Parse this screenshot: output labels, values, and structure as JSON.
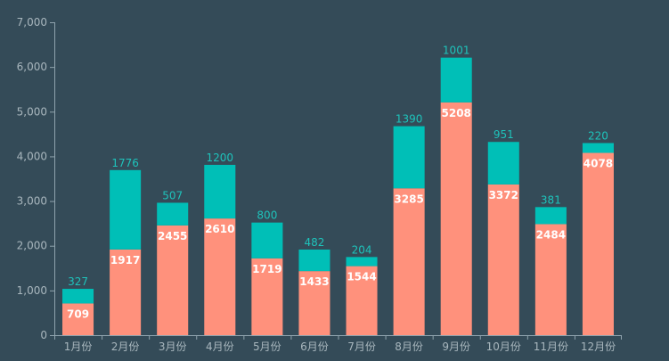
{
  "chart_data": {
    "type": "bar",
    "stacked": true,
    "categories": [
      "1月份",
      "2月份",
      "3月份",
      "4月份",
      "5月份",
      "6月份",
      "7月份",
      "8月份",
      "9月份",
      "10月份",
      "11月份",
      "12月份"
    ],
    "series": [
      {
        "values": [
          709,
          1917,
          2455,
          2610,
          1719,
          1433,
          1544,
          3285,
          5208,
          3372,
          2484,
          4078
        ],
        "color": "#ff917c",
        "label_color": "#ffffff",
        "label_position": "inside-top"
      },
      {
        "values": [
          327,
          1776,
          507,
          1200,
          800,
          482,
          204,
          1390,
          1001,
          951,
          381,
          220
        ],
        "color": "#00bfb7",
        "label_color": "#1ec3bb",
        "label_position": "top"
      }
    ],
    "ylim": [
      0,
      7000
    ],
    "yticks": [
      0,
      1000,
      2000,
      3000,
      4000,
      5000,
      6000,
      7000
    ],
    "ytick_labels": [
      "0",
      "1,000",
      "2,000",
      "3,000",
      "4,000",
      "5,000",
      "6,000",
      "7,000"
    ],
    "grid": false,
    "title": "",
    "xlabel": "",
    "ylabel": "",
    "colors": {
      "background": "#344b58",
      "axis": "#8fa3ad",
      "tick_label": "#a8b6bd"
    }
  }
}
